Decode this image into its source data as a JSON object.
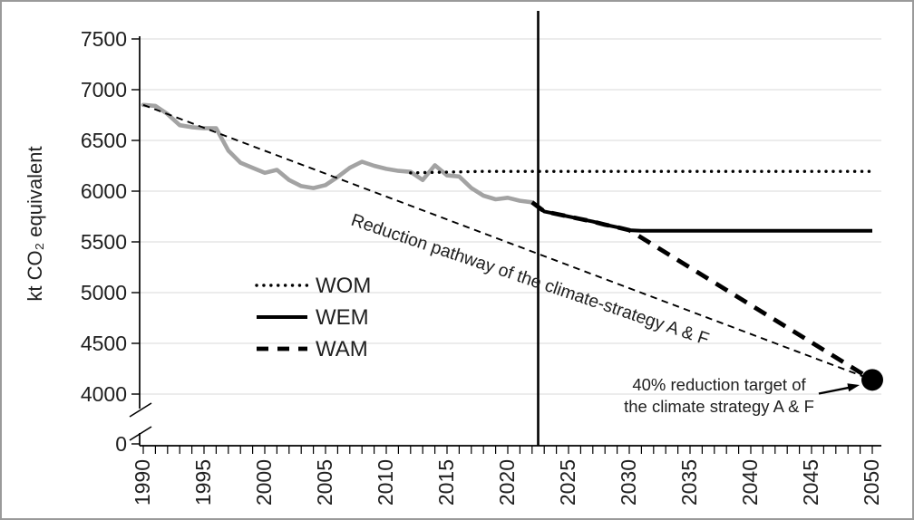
{
  "frame": {
    "border_color": "#9a9a9a",
    "background": "#ffffff"
  },
  "chart_data": {
    "type": "line",
    "title": "",
    "ylabel": "kt CO₂ equivalent",
    "xlabel": "",
    "grid": "horizontal",
    "x_axis": {
      "min": 1990,
      "max": 2050,
      "minor_step": 1,
      "label_step": 5,
      "tick_labels": [
        "1990",
        "1995",
        "2000",
        "2005",
        "2010",
        "2015",
        "2020",
        "2025",
        "2030",
        "2035",
        "2040",
        "2045",
        "2050"
      ]
    },
    "y_axis": {
      "upper_min": 4000,
      "upper_max": 7500,
      "step": 500,
      "tick_labels": [
        "7500",
        "7000",
        "6500",
        "6000",
        "5500",
        "5000",
        "4500",
        "4000"
      ],
      "zero_label": "0",
      "axis_break": true
    },
    "divider_year": 2022.5,
    "series": [
      {
        "name": "historical-inventory",
        "style": "grey-solid",
        "color": "#a3a3a3",
        "points": [
          [
            1990,
            6850
          ],
          [
            1991,
            6840
          ],
          [
            1992,
            6760
          ],
          [
            1993,
            6650
          ],
          [
            1994,
            6630
          ],
          [
            1995,
            6620
          ],
          [
            1996,
            6620
          ],
          [
            1997,
            6400
          ],
          [
            1998,
            6280
          ],
          [
            1999,
            6230
          ],
          [
            2000,
            6180
          ],
          [
            2001,
            6210
          ],
          [
            2002,
            6110
          ],
          [
            2003,
            6050
          ],
          [
            2004,
            6030
          ],
          [
            2005,
            6060
          ],
          [
            2006,
            6140
          ],
          [
            2007,
            6230
          ],
          [
            2008,
            6290
          ],
          [
            2009,
            6250
          ],
          [
            2010,
            6220
          ],
          [
            2011,
            6200
          ],
          [
            2012,
            6190
          ],
          [
            2013,
            6110
          ],
          [
            2014,
            6255
          ],
          [
            2015,
            6155
          ],
          [
            2016,
            6145
          ],
          [
            2017,
            6030
          ],
          [
            2018,
            5955
          ],
          [
            2019,
            5920
          ],
          [
            2020,
            5935
          ],
          [
            2021,
            5905
          ],
          [
            2022,
            5890
          ]
        ]
      },
      {
        "name": "WOM",
        "style": "dotted",
        "color": "#000000",
        "points": [
          [
            2012,
            6180
          ],
          [
            2014,
            6185
          ],
          [
            2016,
            6190
          ],
          [
            2018,
            6195
          ],
          [
            2050,
            6195
          ]
        ]
      },
      {
        "name": "WEM",
        "style": "solid",
        "color": "#000000",
        "points": [
          [
            2022,
            5890
          ],
          [
            2023,
            5800
          ],
          [
            2024,
            5775
          ],
          [
            2025,
            5750
          ],
          [
            2026,
            5725
          ],
          [
            2027,
            5700
          ],
          [
            2028,
            5670
          ],
          [
            2029,
            5645
          ],
          [
            2030,
            5615
          ],
          [
            2031,
            5610
          ],
          [
            2050,
            5610
          ]
        ]
      },
      {
        "name": "WAM",
        "style": "dashed-thick",
        "color": "#000000",
        "points": [
          [
            2022,
            5890
          ],
          [
            2023,
            5800
          ],
          [
            2024,
            5775
          ],
          [
            2025,
            5750
          ],
          [
            2026,
            5725
          ],
          [
            2027,
            5700
          ],
          [
            2028,
            5670
          ],
          [
            2029,
            5645
          ],
          [
            2030,
            5615
          ],
          [
            2050,
            4140
          ]
        ]
      },
      {
        "name": "reduction-pathway",
        "style": "dashed-thin",
        "color": "#000000",
        "points": [
          [
            1990,
            6850
          ],
          [
            2050,
            4140
          ]
        ]
      }
    ],
    "target_point": {
      "year": 2050,
      "value": 4140
    }
  },
  "legend": {
    "items": [
      {
        "label": "WOM",
        "style": "dotted"
      },
      {
        "label": "WEM",
        "style": "solid"
      },
      {
        "label": "WAM",
        "style": "dashed-thick"
      }
    ]
  },
  "annotations": {
    "pathway_label": "Reduction pathway of the climate-strategy A & F",
    "target_label_line1": "40% reduction target of",
    "target_label_line2": "the climate strategy A & F"
  },
  "colors": {
    "line_black": "#000000",
    "line_grey": "#a3a3a3",
    "gridline": "#d9d9d9",
    "text": "#202020"
  }
}
